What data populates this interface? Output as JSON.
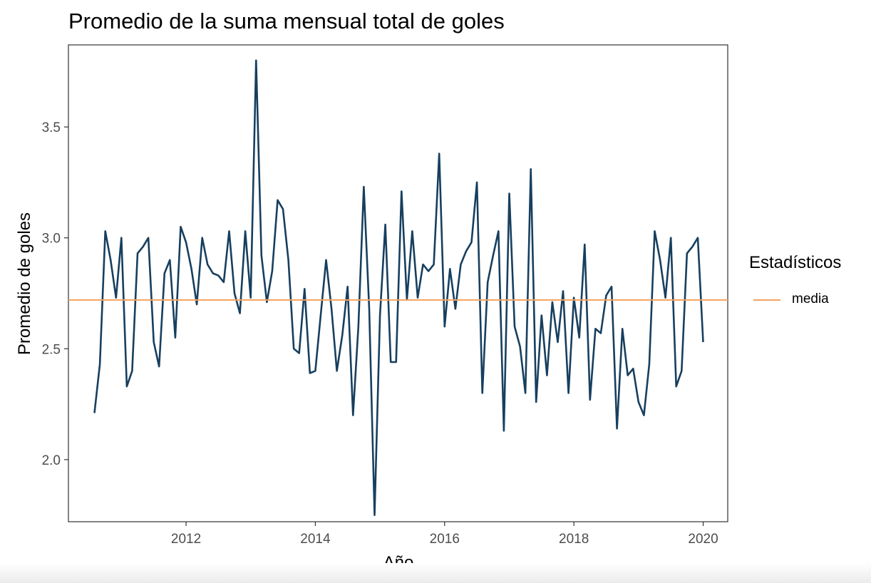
{
  "chart_data": {
    "type": "line",
    "title": "Promedio de la suma mensual total de goles",
    "xlabel": "Año",
    "ylabel": "Promedio de goles",
    "xlim": [
      2010.18,
      2020.38
    ],
    "ylim": [
      1.72,
      3.87
    ],
    "x_ticks": [
      2012,
      2014,
      2016,
      2018,
      2020
    ],
    "y_ticks": [
      2.0,
      2.5,
      3.0,
      3.5
    ],
    "y_tick_labels": [
      "2.0",
      "2.5",
      "3.0",
      "3.5"
    ],
    "grid": false,
    "legend_position": "right",
    "legend_title": "Estadísticos",
    "colors": {
      "series": "#173f5f",
      "media": "#f4a261"
    },
    "hline": {
      "name": "media",
      "value": 2.72
    },
    "series": [
      {
        "x_start": 2010.583,
        "step_months": 1,
        "values": [
          2.21,
          2.43,
          3.03,
          2.9,
          2.73,
          3.0,
          2.33,
          2.4,
          2.93,
          2.96,
          3.0,
          2.53,
          2.42,
          2.84,
          2.9,
          2.55,
          3.05,
          2.98,
          2.86,
          2.7,
          3.0,
          2.88,
          2.84,
          2.83,
          2.8,
          3.03,
          2.75,
          2.66,
          3.03,
          2.73,
          3.8,
          2.92,
          2.71,
          2.85,
          3.17,
          3.13,
          2.9,
          2.5,
          2.48,
          2.77,
          2.39,
          2.4,
          2.65,
          2.9,
          2.68,
          2.4,
          2.56,
          2.78,
          2.2,
          2.6,
          3.23,
          2.68,
          1.75,
          2.65,
          3.06,
          2.44,
          2.44,
          3.21,
          2.72,
          3.03,
          2.73,
          2.88,
          2.85,
          2.88,
          3.38,
          2.6,
          2.86,
          2.68,
          2.88,
          2.94,
          2.98,
          3.25,
          2.3,
          2.8,
          2.92,
          3.03,
          2.13,
          3.2,
          2.6,
          2.51,
          2.3,
          3.31,
          2.26,
          2.65,
          2.38,
          2.71,
          2.53,
          2.76,
          2.3,
          2.73,
          2.55,
          2.97,
          2.27,
          2.59,
          2.57,
          2.74,
          2.78,
          2.14,
          2.59,
          2.38,
          2.41,
          2.26,
          2.2,
          2.43,
          3.03,
          2.9,
          2.73,
          3.0,
          2.33,
          2.4,
          2.93,
          2.96,
          3.0,
          2.53
        ]
      }
    ]
  }
}
